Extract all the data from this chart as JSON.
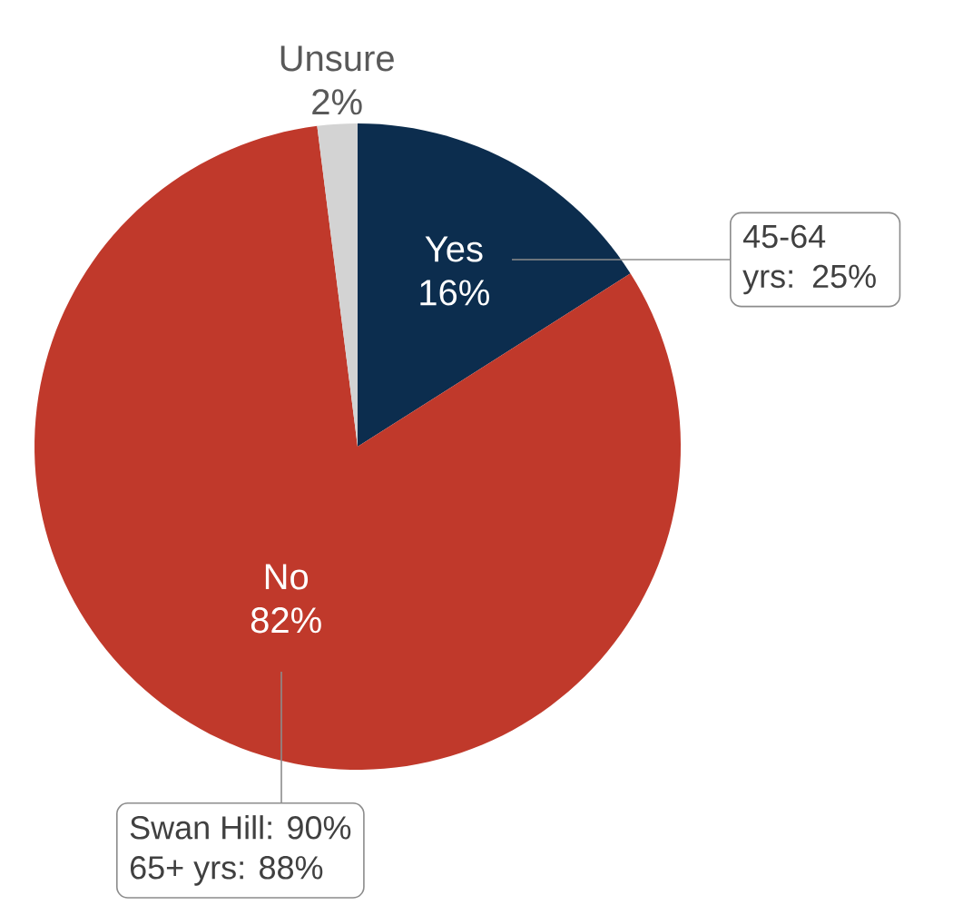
{
  "chart_data": {
    "type": "pie",
    "categories": [
      "Yes",
      "No",
      "Unsure"
    ],
    "values": [
      16,
      82,
      2
    ],
    "value_labels": [
      "16%",
      "82%",
      "2%"
    ],
    "colors": [
      "#0c2d4e",
      "#c0392b",
      "#d3d3d3"
    ],
    "annotations": [
      "45-64 yrs: 25%",
      "Swan Hill: 90%",
      "65+ yrs: 88%"
    ]
  }
}
